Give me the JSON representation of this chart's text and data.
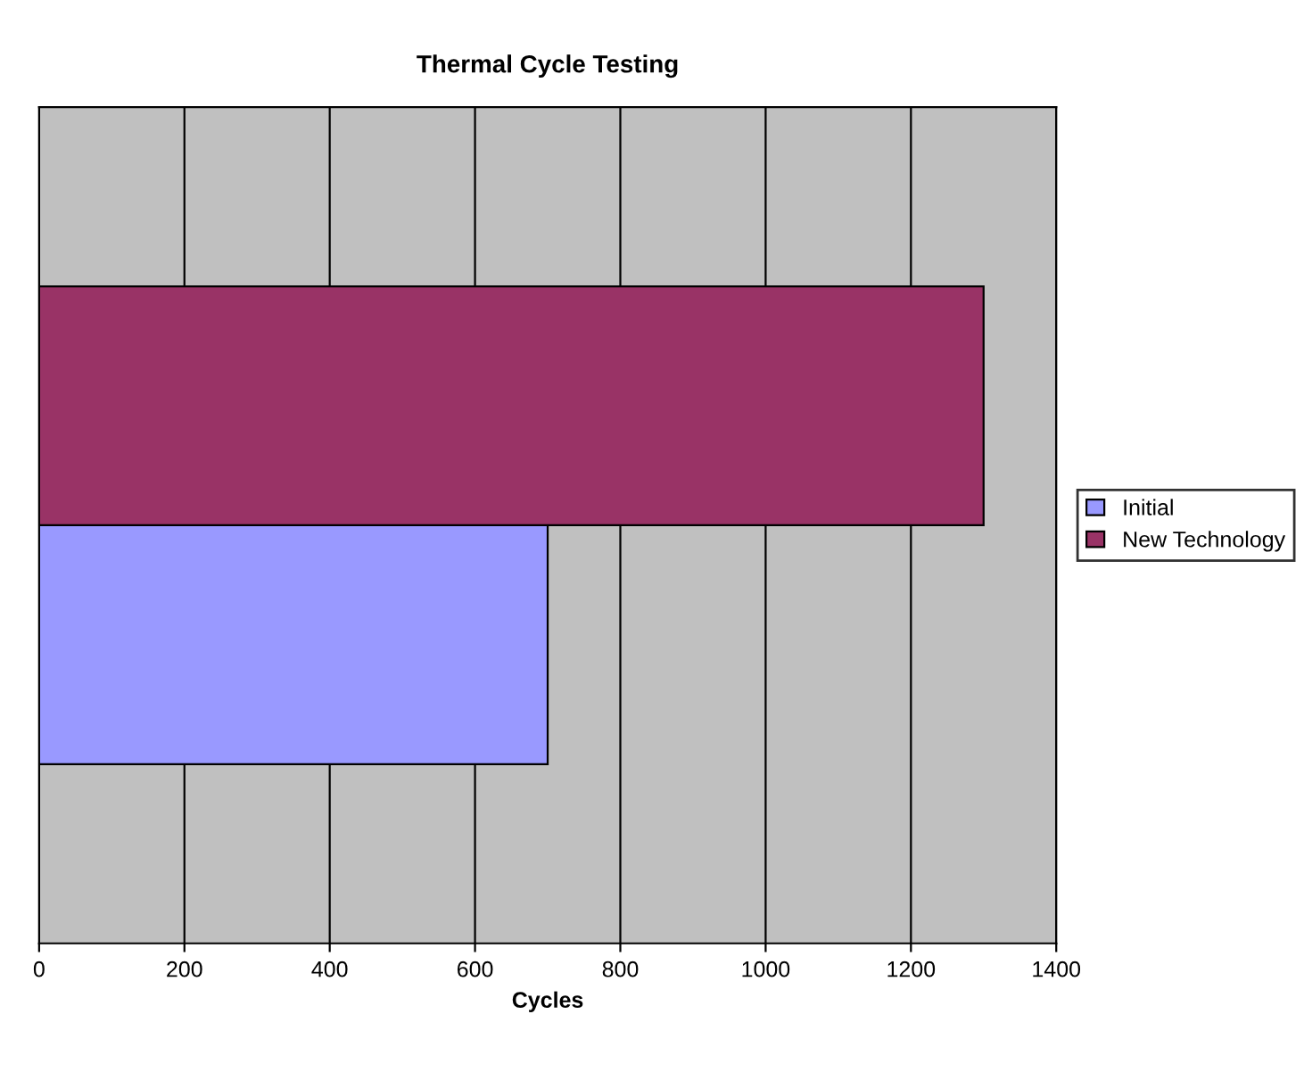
{
  "chart_data": {
    "type": "bar",
    "orientation": "horizontal",
    "title": "Thermal Cycle Testing",
    "xlabel": "Cycles",
    "categories": [
      null
    ],
    "series": [
      {
        "name": "Initial",
        "color": "#9999ff",
        "values": [
          700
        ]
      },
      {
        "name": "New Technology",
        "color": "#993366",
        "values": [
          1300
        ]
      }
    ],
    "xlim": [
      0,
      1400
    ],
    "xticks": [
      0,
      200,
      400,
      600,
      800,
      1000,
      1200,
      1400
    ],
    "grid": "x",
    "legend": "right"
  }
}
